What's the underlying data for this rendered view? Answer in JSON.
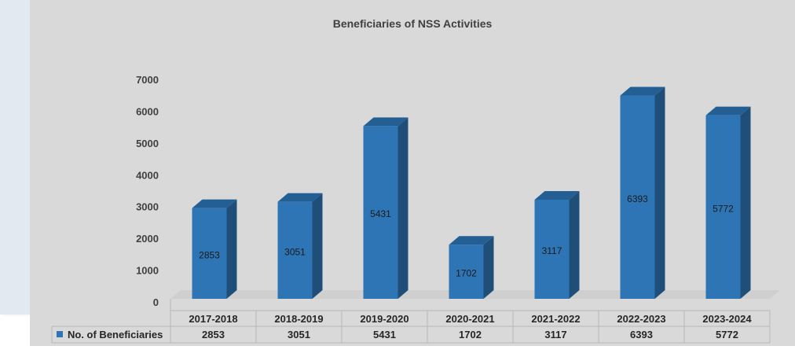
{
  "chart_data": {
    "type": "bar",
    "title": "Beneficiaries of NSS Activities",
    "categories": [
      "2017-2018",
      "2018-2019",
      "2019-2020",
      "2020-2021",
      "2021-2022",
      "2022-2023",
      "2023-2024"
    ],
    "series": [
      {
        "name": "No. of Beneficiaries",
        "values": [
          2853,
          3051,
          5431,
          1702,
          3117,
          6393,
          5772
        ]
      }
    ],
    "yticks": [
      "0",
      "1000",
      "2000",
      "3000",
      "4000",
      "5000",
      "6000",
      "7000"
    ],
    "ylim": [
      0,
      7000
    ],
    "data_table": true,
    "bar_color": "#2e75b6",
    "bar_side_color": "#1f4e79",
    "bar_top_color": "#245f94"
  }
}
